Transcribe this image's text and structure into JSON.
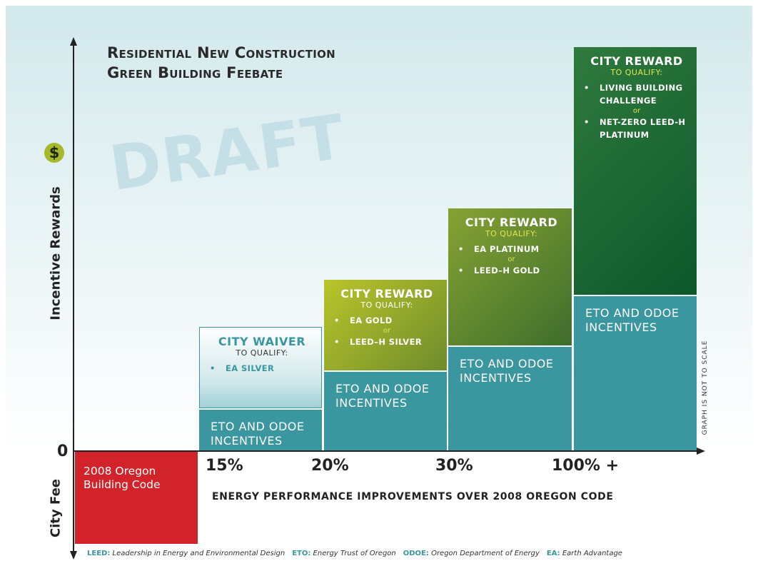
{
  "title": [
    "Residential New Construction",
    "Green Building Feebate"
  ],
  "watermark": "DRAFT",
  "y_axis": {
    "symbol": "$",
    "upper_label": "Incentive Rewards",
    "zero": "0",
    "lower_label": "City Fee"
  },
  "baseline": {
    "label": [
      "2008 Oregon",
      "Building Code"
    ]
  },
  "x_axis": {
    "ticks": [
      "15%",
      "20%",
      "30%",
      "100% +"
    ],
    "label": "ENERGY PERFORMANCE IMPROVEMENTS OVER 2008 OREGON CODE"
  },
  "columns": [
    {
      "base": "ETO AND ODOE INCENTIVES",
      "tier": {
        "heading": "CITY WAIVER",
        "qualify": "TO QUALIFY:",
        "options": [
          "EA SILVER"
        ]
      }
    },
    {
      "base": "ETO AND ODOE INCENTIVES",
      "tier": {
        "heading": "CITY REWARD",
        "qualify": "TO QUALIFY:",
        "options": [
          "EA GOLD",
          "LEED–H SILVER"
        ],
        "separator": "or"
      }
    },
    {
      "base": "ETO AND ODOE INCENTIVES",
      "tier": {
        "heading": "CITY REWARD",
        "qualify": "TO QUALIFY:",
        "options": [
          "EA PLATINUM",
          "LEED–H GOLD"
        ],
        "separator": "or"
      }
    },
    {
      "base": "ETO AND ODOE INCENTIVES",
      "tier": {
        "heading": "CITY REWARD",
        "qualify": "TO QUALIFY:",
        "options": [
          "LIVING BUILDING CHALLENGE",
          "NET-ZERO LEED-H PLATINUM"
        ],
        "separator": "or"
      }
    }
  ],
  "note": "GRAPH IS NOT TO SCALE",
  "footer": [
    {
      "term": "LEED:",
      "definition": "Leadership in Energy and Environmental Design"
    },
    {
      "term": "ETO:",
      "definition": "Energy Trust of Oregon"
    },
    {
      "term": "ODOE:",
      "definition": "Oregon Department of Energy"
    },
    {
      "term": "EA:",
      "definition": "Earth Advantage"
    }
  ]
}
